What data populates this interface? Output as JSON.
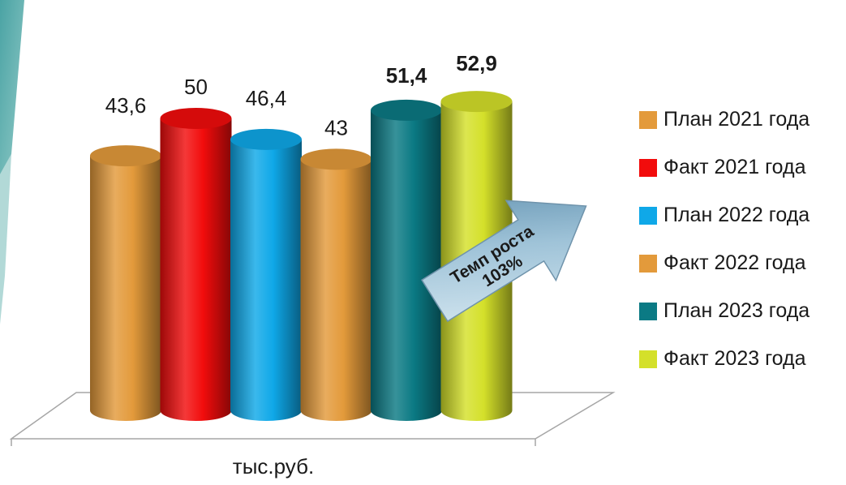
{
  "chart_data": {
    "type": "bar",
    "style": "3d-cylinder",
    "xlabel": "тыс.руб.",
    "categories": [
      "План 2021 года",
      "Факт 2021 года",
      "План 2022 года",
      "Факт 2022 года",
      "План 2023 года",
      "Факт 2023 года"
    ],
    "values": [
      43.6,
      50,
      46.4,
      43,
      51.4,
      52.9
    ],
    "value_labels": [
      "43,6",
      "50",
      "46,4",
      "43",
      "51,4",
      "52,9"
    ],
    "bold_labels": [
      false,
      false,
      false,
      false,
      true,
      true
    ],
    "colors": [
      "#E39A3B",
      "#F20C0C",
      "#0FA8E8",
      "#E39A3B",
      "#0B7A84",
      "#D4E02A"
    ],
    "legend_position": "right",
    "annotation": {
      "line1": "Темп роста",
      "line2": "103%"
    }
  }
}
